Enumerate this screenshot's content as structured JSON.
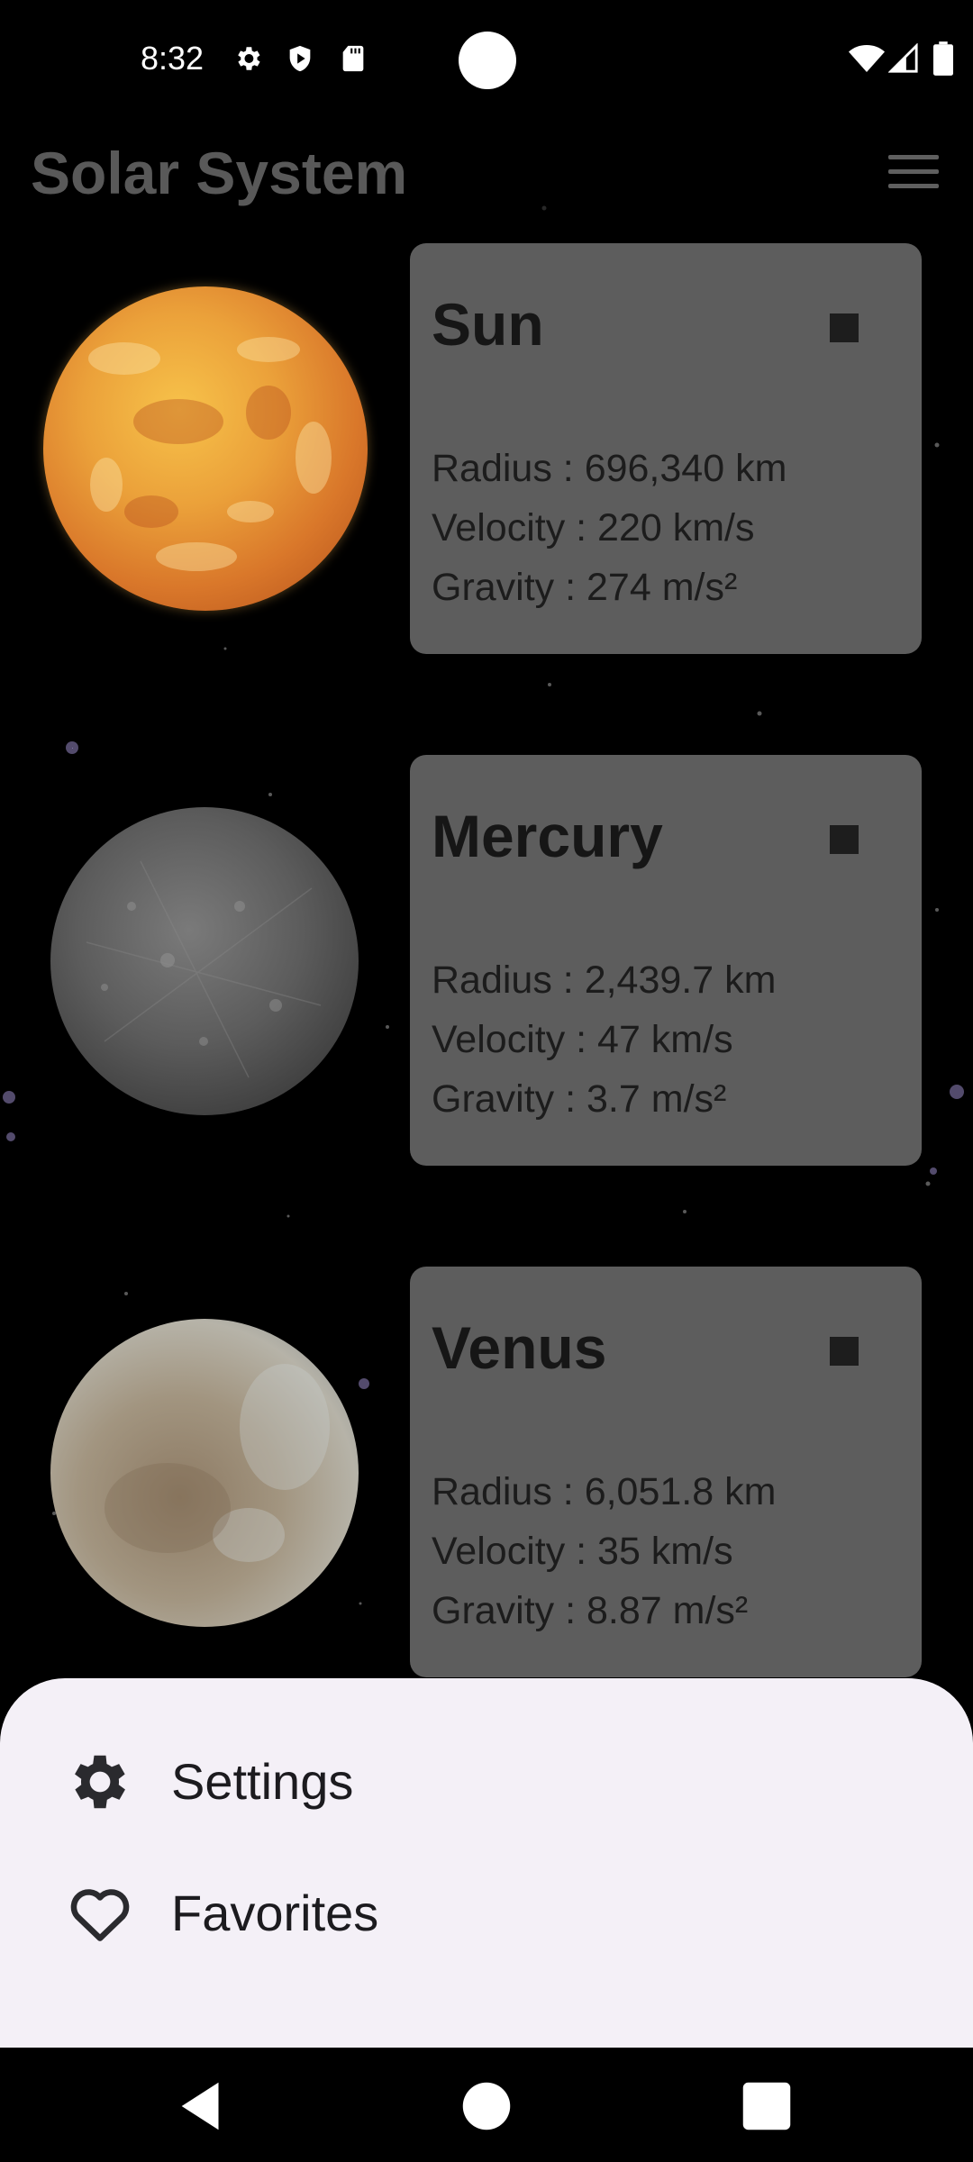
{
  "status_bar": {
    "time": "8:32",
    "left_icons": [
      "settings-gear-icon",
      "shield-play-icon",
      "sd-card-icon"
    ],
    "right_icons": [
      "wifi-icon",
      "cell-signal-icon",
      "battery-icon"
    ]
  },
  "app_bar": {
    "title": "Solar System",
    "menu_icon": "hamburger-menu-icon"
  },
  "planets": [
    {
      "name": "Sun",
      "radius": "Radius : 696,340 km",
      "velocity": "Velocity : 220 km/s",
      "gravity": "Gravity : 274 m/s²",
      "color": "#e8a030"
    },
    {
      "name": "Mercury",
      "radius": "Radius : 2,439.7 km",
      "velocity": "Velocity : 47 km/s",
      "gravity": "Gravity : 3.7 m/s²",
      "color": "#6a6a6a"
    },
    {
      "name": "Venus",
      "radius": "Radius : 6,051.8 km",
      "velocity": "Velocity : 35 km/s",
      "gravity": "Gravity : 8.87 m/s²",
      "color": "#b7ab98"
    }
  ],
  "bottom_sheet": {
    "items": [
      {
        "label": "Settings",
        "icon": "gear-icon"
      },
      {
        "label": "Favorites",
        "icon": "heart-outline-icon"
      }
    ]
  },
  "nav_bar": {
    "buttons": [
      "back-icon",
      "home-icon",
      "recents-icon"
    ]
  }
}
